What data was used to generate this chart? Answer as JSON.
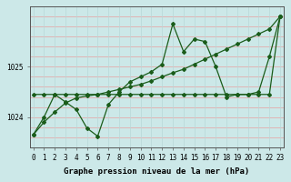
{
  "x": [
    0,
    1,
    2,
    3,
    4,
    5,
    6,
    7,
    8,
    9,
    10,
    11,
    12,
    13,
    14,
    15,
    16,
    17,
    18,
    19,
    20,
    21,
    22,
    23
  ],
  "y_main": [
    1023.65,
    1024.0,
    1024.45,
    1024.3,
    1024.15,
    1023.78,
    1023.62,
    1024.25,
    1024.5,
    1024.7,
    1024.8,
    1024.9,
    1025.05,
    1025.85,
    1025.3,
    1025.55,
    1025.5,
    1025.0,
    1024.4,
    1024.45,
    1024.45,
    1024.5,
    1025.2,
    1026.0
  ],
  "y_flat": [
    1024.45,
    1024.45,
    1024.45,
    1024.45,
    1024.45,
    1024.45,
    1024.45,
    1024.45,
    1024.45,
    1024.45,
    1024.45,
    1024.45,
    1024.45,
    1024.45,
    1024.45,
    1024.45,
    1024.45,
    1024.45,
    1024.45,
    1024.45,
    1024.45,
    1024.45,
    1024.45,
    1026.0
  ],
  "y_diag": [
    1023.65,
    1023.9,
    1024.1,
    1024.28,
    1024.38,
    1024.42,
    1024.45,
    1024.5,
    1024.55,
    1024.6,
    1024.65,
    1024.72,
    1024.8,
    1024.88,
    1024.95,
    1025.05,
    1025.15,
    1025.25,
    1025.35,
    1025.45,
    1025.55,
    1025.65,
    1025.75,
    1026.0
  ],
  "bg_color": "#cce8e8",
  "grid_color_h": "#e8a0a0",
  "grid_color_v": "#b8d8d8",
  "line_color": "#1a5c1a",
  "ylim": [
    1023.4,
    1026.2
  ],
  "xlim": [
    -0.3,
    23.3
  ],
  "xlabel": "Graphe pression niveau de la mer (hPa)",
  "xticks": [
    0,
    1,
    2,
    3,
    4,
    5,
    6,
    7,
    8,
    9,
    10,
    11,
    12,
    13,
    14,
    15,
    16,
    17,
    18,
    19,
    20,
    21,
    22,
    23
  ],
  "yticks": [
    1024,
    1025
  ],
  "marker": "D",
  "marker_size": 2.0,
  "line_width": 0.9,
  "xlabel_fontsize": 6.5,
  "tick_fontsize": 5.5
}
